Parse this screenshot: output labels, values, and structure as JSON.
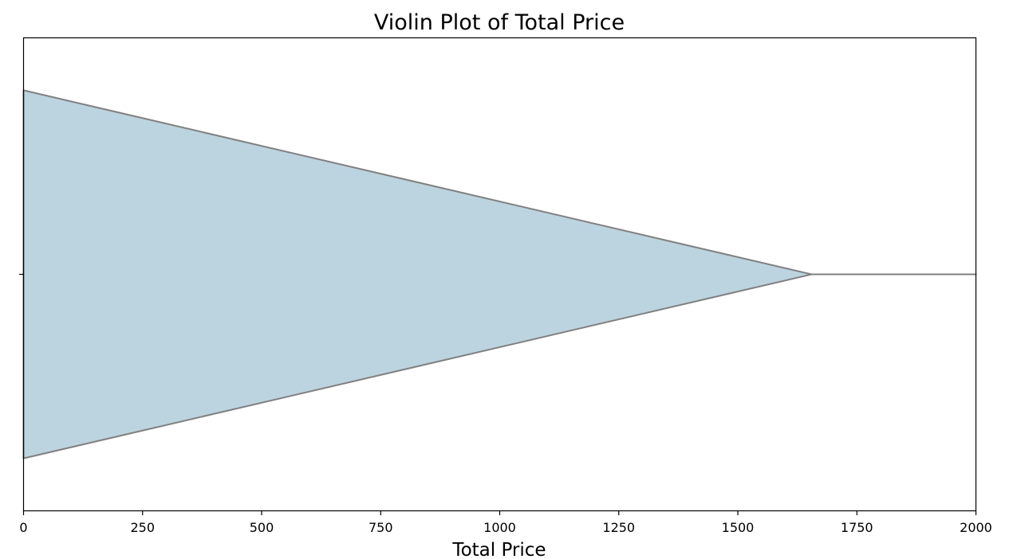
{
  "chart_data": {
    "type": "violin",
    "orientation": "horizontal",
    "title": "Violin Plot of Total Price",
    "xlabel": "Total Price",
    "ylabel": "",
    "xlim": [
      0,
      2000
    ],
    "xticks": [
      0,
      250,
      500,
      750,
      1000,
      1250,
      1500,
      1750,
      2000
    ],
    "xtick_labels": [
      "0",
      "250",
      "500",
      "750",
      "1000",
      "1250",
      "1500",
      "1750",
      "2000"
    ],
    "grid": false,
    "legend": "none",
    "fill_color": "#bcd4e0",
    "edge_color": "#808080",
    "density": {
      "x": [
        0,
        1655,
        2000
      ],
      "half_width": [
        0.39,
        0,
        0
      ],
      "upper_half_width": [
        0.39,
        0,
        0
      ],
      "lower_half_width": [
        0.39,
        0,
        0
      ],
      "note_free": true
    }
  }
}
